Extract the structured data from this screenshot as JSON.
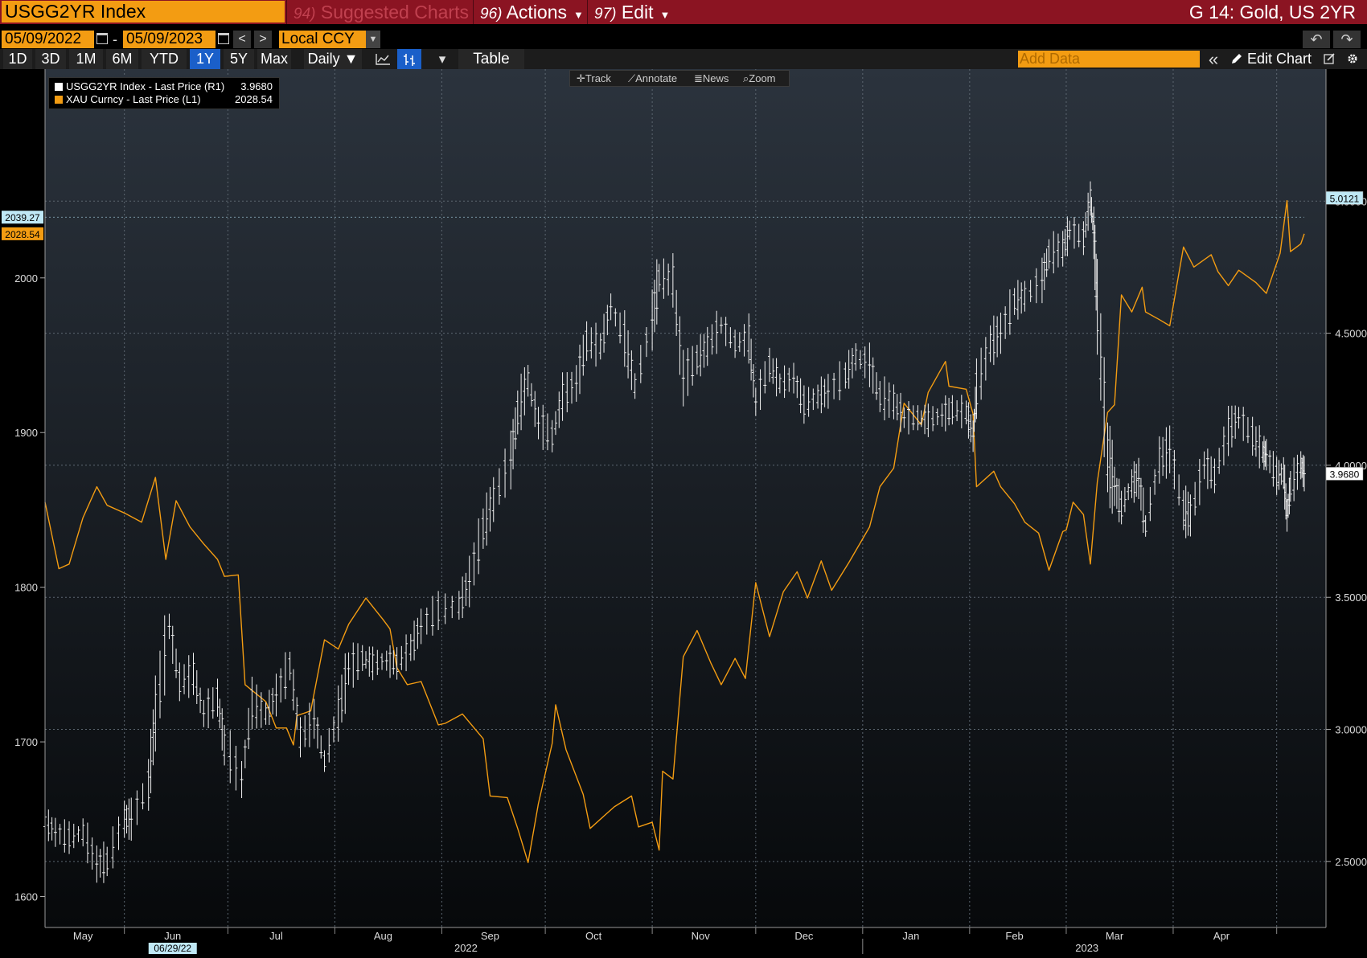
{
  "header": {
    "ticker": "USGG2YR Index",
    "menus": [
      {
        "num": "94)",
        "label": "Suggested Charts",
        "caret": ""
      },
      {
        "num": "96)",
        "label": "Actions",
        "caret": "▼"
      },
      {
        "num": "97)",
        "label": "Edit",
        "caret": "▼"
      }
    ],
    "title": "G 14: Gold, US 2YR"
  },
  "dates": {
    "start": "05/09/2022",
    "dash": "-",
    "end": "05/09/2023",
    "prev": "<",
    "next": ">",
    "currency": "Local CCY",
    "currency_caret": "▼"
  },
  "toolbar": {
    "timeframes": [
      "1D",
      "3D",
      "1M",
      "6M",
      "YTD",
      "1Y",
      "5Y",
      "Max"
    ],
    "active_timeframe": "1Y",
    "frequency": "Daily ▼",
    "line_icon": "line-chart-icon",
    "bar_icon": "ohlc-bar-icon",
    "dropdown": "▾",
    "table_label": "Table",
    "add_data_placeholder": "Add Data",
    "collapse": "«",
    "edit_chart_label": "Edit Chart",
    "undo": "↶",
    "redo": "↷"
  },
  "chart_tools": {
    "track": "Track",
    "annotate": "Annotate",
    "news": "News",
    "zoom": "Zoom"
  },
  "legend": [
    {
      "label": "USGG2YR Index - Last Price (R1)",
      "value": "3.9680",
      "color": "#ffffff"
    },
    {
      "label": "XAU Curncy - Last Price (L1)",
      "value": "2028.54",
      "color": "#f39c12"
    }
  ],
  "chart_data": {
    "type": "line",
    "left_axis": {
      "min": 1580,
      "max": 2135,
      "ticks": [
        1600,
        1700,
        1800,
        1900,
        2000
      ]
    },
    "right_axis": {
      "min": 2.25,
      "max": 5.5,
      "ticks": [
        "2.5000",
        "3.0000",
        "3.5000",
        "4.0000",
        "4.5000",
        "5.0000"
      ]
    },
    "x_range": [
      "2022-05-09",
      "2023-05-09"
    ],
    "month_labels": [
      "May",
      "Jun",
      "Jul",
      "Aug",
      "Sep",
      "Oct",
      "Nov",
      "Dec",
      "Jan",
      "Feb",
      "Mar",
      "Apr"
    ],
    "year_labels": [
      "2022",
      "2023"
    ],
    "date_marker": "06/29/22",
    "markers": {
      "gold_high": "2039.27",
      "gold_last": "2028.54",
      "yield_high": "5.0121",
      "yield_last": "3.9680"
    },
    "series": [
      {
        "name": "XAU Curncy - Last Price (L1)",
        "axis": "left",
        "color": "#f39c12",
        "style": "line",
        "points": [
          [
            "2022-05-09",
            1855
          ],
          [
            "2022-05-13",
            1812
          ],
          [
            "2022-05-16",
            1815
          ],
          [
            "2022-05-20",
            1845
          ],
          [
            "2022-05-24",
            1865
          ],
          [
            "2022-05-27",
            1853
          ],
          [
            "2022-06-01",
            1848
          ],
          [
            "2022-06-06",
            1842
          ],
          [
            "2022-06-10",
            1871
          ],
          [
            "2022-06-13",
            1818
          ],
          [
            "2022-06-16",
            1856
          ],
          [
            "2022-06-20",
            1839
          ],
          [
            "2022-06-24",
            1828
          ],
          [
            "2022-06-28",
            1818
          ],
          [
            "2022-06-30",
            1807
          ],
          [
            "2022-07-04",
            1808
          ],
          [
            "2022-07-06",
            1737
          ],
          [
            "2022-07-12",
            1726
          ],
          [
            "2022-07-15",
            1709
          ],
          [
            "2022-07-18",
            1709
          ],
          [
            "2022-07-20",
            1698
          ],
          [
            "2022-07-21",
            1717
          ],
          [
            "2022-07-25",
            1720
          ],
          [
            "2022-07-29",
            1766
          ],
          [
            "2022-08-02",
            1760
          ],
          [
            "2022-08-05",
            1776
          ],
          [
            "2022-08-10",
            1793
          ],
          [
            "2022-08-15",
            1779
          ],
          [
            "2022-08-17",
            1773
          ],
          [
            "2022-08-19",
            1748
          ],
          [
            "2022-08-22",
            1737
          ],
          [
            "2022-08-26",
            1739
          ],
          [
            "2022-08-31",
            1711
          ],
          [
            "2022-09-02",
            1712
          ],
          [
            "2022-09-07",
            1718
          ],
          [
            "2022-09-13",
            1702
          ],
          [
            "2022-09-15",
            1665
          ],
          [
            "2022-09-20",
            1664
          ],
          [
            "2022-09-23",
            1644
          ],
          [
            "2022-09-26",
            1622
          ],
          [
            "2022-09-29",
            1660
          ],
          [
            "2022-10-03",
            1699
          ],
          [
            "2022-10-04",
            1724
          ],
          [
            "2022-10-07",
            1695
          ],
          [
            "2022-10-12",
            1666
          ],
          [
            "2022-10-14",
            1644
          ],
          [
            "2022-10-18",
            1652
          ],
          [
            "2022-10-21",
            1658
          ],
          [
            "2022-10-26",
            1665
          ],
          [
            "2022-10-28",
            1645
          ],
          [
            "2022-11-01",
            1648
          ],
          [
            "2022-11-03",
            1630
          ],
          [
            "2022-11-04",
            1681
          ],
          [
            "2022-11-07",
            1676
          ],
          [
            "2022-11-10",
            1755
          ],
          [
            "2022-11-14",
            1772
          ],
          [
            "2022-11-18",
            1751
          ],
          [
            "2022-11-21",
            1737
          ],
          [
            "2022-11-25",
            1754
          ],
          [
            "2022-11-28",
            1741
          ],
          [
            "2022-12-01",
            1803
          ],
          [
            "2022-12-05",
            1768
          ],
          [
            "2022-12-09",
            1797
          ],
          [
            "2022-12-13",
            1810
          ],
          [
            "2022-12-16",
            1793
          ],
          [
            "2022-12-20",
            1817
          ],
          [
            "2022-12-23",
            1798
          ],
          [
            "2022-12-28",
            1816
          ],
          [
            "2023-01-03",
            1839
          ],
          [
            "2023-01-06",
            1865
          ],
          [
            "2023-01-10",
            1877
          ],
          [
            "2023-01-13",
            1919
          ],
          [
            "2023-01-18",
            1905
          ],
          [
            "2023-01-20",
            1926
          ],
          [
            "2023-01-25",
            1946
          ],
          [
            "2023-01-26",
            1930
          ],
          [
            "2023-01-31",
            1928
          ],
          [
            "2023-02-02",
            1912
          ],
          [
            "2023-02-03",
            1865
          ],
          [
            "2023-02-08",
            1875
          ],
          [
            "2023-02-10",
            1865
          ],
          [
            "2023-02-14",
            1854
          ],
          [
            "2023-02-17",
            1842
          ],
          [
            "2023-02-21",
            1835
          ],
          [
            "2023-02-24",
            1811
          ],
          [
            "2023-02-28",
            1836
          ],
          [
            "2023-03-01",
            1837
          ],
          [
            "2023-03-03",
            1855
          ],
          [
            "2023-03-06",
            1847
          ],
          [
            "2023-03-08",
            1815
          ],
          [
            "2023-03-10",
            1868
          ],
          [
            "2023-03-13",
            1913
          ],
          [
            "2023-03-15",
            1918
          ],
          [
            "2023-03-17",
            1989
          ],
          [
            "2023-03-20",
            1978
          ],
          [
            "2023-03-23",
            1994
          ],
          [
            "2023-03-24",
            1978
          ],
          [
            "2023-03-28",
            1973
          ],
          [
            "2023-03-31",
            1969
          ],
          [
            "2023-04-04",
            2020
          ],
          [
            "2023-04-07",
            2007
          ],
          [
            "2023-04-12",
            2015
          ],
          [
            "2023-04-14",
            2004
          ],
          [
            "2023-04-17",
            1995
          ],
          [
            "2023-04-20",
            2005
          ],
          [
            "2023-04-25",
            1997
          ],
          [
            "2023-04-28",
            1990
          ],
          [
            "2023-05-02",
            2016
          ],
          [
            "2023-05-04",
            2050
          ],
          [
            "2023-05-05",
            2017
          ],
          [
            "2023-05-08",
            2022
          ],
          [
            "2023-05-09",
            2028.54
          ]
        ]
      },
      {
        "name": "USGG2YR Index - Last Price (R1)",
        "axis": "right",
        "color": "#ffffff",
        "style": "ohlc",
        "points": [
          [
            "2022-05-09",
            2.65
          ],
          [
            "2022-05-12",
            2.61
          ],
          [
            "2022-05-16",
            2.59
          ],
          [
            "2022-05-20",
            2.61
          ],
          [
            "2022-05-24",
            2.49
          ],
          [
            "2022-05-27",
            2.5
          ],
          [
            "2022-06-01",
            2.66
          ],
          [
            "2022-06-03",
            2.66
          ],
          [
            "2022-06-08",
            2.79
          ],
          [
            "2022-06-10",
            3.06
          ],
          [
            "2022-06-14",
            3.39
          ],
          [
            "2022-06-17",
            3.18
          ],
          [
            "2022-06-21",
            3.21
          ],
          [
            "2022-06-24",
            3.06
          ],
          [
            "2022-06-28",
            3.12
          ],
          [
            "2022-06-30",
            2.94
          ],
          [
            "2022-07-05",
            2.81
          ],
          [
            "2022-07-08",
            3.1
          ],
          [
            "2022-07-12",
            3.06
          ],
          [
            "2022-07-15",
            3.13
          ],
          [
            "2022-07-19",
            3.24
          ],
          [
            "2022-07-22",
            2.97
          ],
          [
            "2022-07-26",
            3.04
          ],
          [
            "2022-07-29",
            2.88
          ],
          [
            "2022-08-02",
            3.06
          ],
          [
            "2022-08-05",
            3.23
          ],
          [
            "2022-08-09",
            3.27
          ],
          [
            "2022-08-12",
            3.25
          ],
          [
            "2022-08-16",
            3.26
          ],
          [
            "2022-08-19",
            3.25
          ],
          [
            "2022-08-23",
            3.31
          ],
          [
            "2022-08-26",
            3.39
          ],
          [
            "2022-08-31",
            3.45
          ],
          [
            "2022-09-06",
            3.47
          ],
          [
            "2022-09-09",
            3.56
          ],
          [
            "2022-09-13",
            3.76
          ],
          [
            "2022-09-16",
            3.87
          ],
          [
            "2022-09-21",
            4.02
          ],
          [
            "2022-09-23",
            4.2
          ],
          [
            "2022-09-26",
            4.32
          ],
          [
            "2022-09-29",
            4.16
          ],
          [
            "2022-10-03",
            4.11
          ],
          [
            "2022-10-06",
            4.26
          ],
          [
            "2022-10-10",
            4.31
          ],
          [
            "2022-10-13",
            4.47
          ],
          [
            "2022-10-17",
            4.45
          ],
          [
            "2022-10-20",
            4.6
          ],
          [
            "2022-10-24",
            4.48
          ],
          [
            "2022-10-27",
            4.3
          ],
          [
            "2022-11-01",
            4.55
          ],
          [
            "2022-11-03",
            4.71
          ],
          [
            "2022-11-07",
            4.7
          ],
          [
            "2022-11-10",
            4.33
          ],
          [
            "2022-11-14",
            4.4
          ],
          [
            "2022-11-17",
            4.45
          ],
          [
            "2022-11-21",
            4.53
          ],
          [
            "2022-11-25",
            4.46
          ],
          [
            "2022-11-29",
            4.48
          ],
          [
            "2022-12-01",
            4.24
          ],
          [
            "2022-12-05",
            4.38
          ],
          [
            "2022-12-08",
            4.31
          ],
          [
            "2022-12-12",
            4.33
          ],
          [
            "2022-12-15",
            4.23
          ],
          [
            "2022-12-19",
            4.26
          ],
          [
            "2022-12-22",
            4.28
          ],
          [
            "2022-12-27",
            4.34
          ],
          [
            "2022-12-30",
            4.41
          ],
          [
            "2023-01-03",
            4.38
          ],
          [
            "2023-01-06",
            4.26
          ],
          [
            "2023-01-10",
            4.24
          ],
          [
            "2023-01-13",
            4.18
          ],
          [
            "2023-01-17",
            4.18
          ],
          [
            "2023-01-20",
            4.17
          ],
          [
            "2023-01-24",
            4.19
          ],
          [
            "2023-01-27",
            4.21
          ],
          [
            "2023-01-31",
            4.2
          ],
          [
            "2023-02-02",
            4.11
          ],
          [
            "2023-02-03",
            4.29
          ],
          [
            "2023-02-07",
            4.46
          ],
          [
            "2023-02-10",
            4.5
          ],
          [
            "2023-02-14",
            4.62
          ],
          [
            "2023-02-17",
            4.64
          ],
          [
            "2023-02-22",
            4.7
          ],
          [
            "2023-02-24",
            4.8
          ],
          [
            "2023-02-28",
            4.82
          ],
          [
            "2023-03-02",
            4.89
          ],
          [
            "2023-03-06",
            4.86
          ],
          [
            "2023-03-08",
            5.01
          ],
          [
            "2023-03-09",
            4.88
          ],
          [
            "2023-03-10",
            4.6
          ],
          [
            "2023-03-13",
            4.03
          ],
          [
            "2023-03-15",
            3.92
          ],
          [
            "2023-03-17",
            3.84
          ],
          [
            "2023-03-20",
            3.93
          ],
          [
            "2023-03-22",
            3.95
          ],
          [
            "2023-03-24",
            3.77
          ],
          [
            "2023-03-28",
            4.02
          ],
          [
            "2023-03-31",
            4.06
          ],
          [
            "2023-04-04",
            3.83
          ],
          [
            "2023-04-06",
            3.81
          ],
          [
            "2023-04-10",
            4.0
          ],
          [
            "2023-04-13",
            3.96
          ],
          [
            "2023-04-17",
            4.13
          ],
          [
            "2023-04-20",
            4.18
          ],
          [
            "2023-04-24",
            4.11
          ],
          [
            "2023-04-27",
            4.05
          ],
          [
            "2023-04-28",
            4.04
          ],
          [
            "2023-05-01",
            3.96
          ],
          [
            "2023-05-03",
            3.97
          ],
          [
            "2023-05-04",
            3.81
          ],
          [
            "2023-05-05",
            3.92
          ],
          [
            "2023-05-08",
            4.0
          ],
          [
            "2023-05-09",
            3.968
          ]
        ]
      }
    ]
  }
}
